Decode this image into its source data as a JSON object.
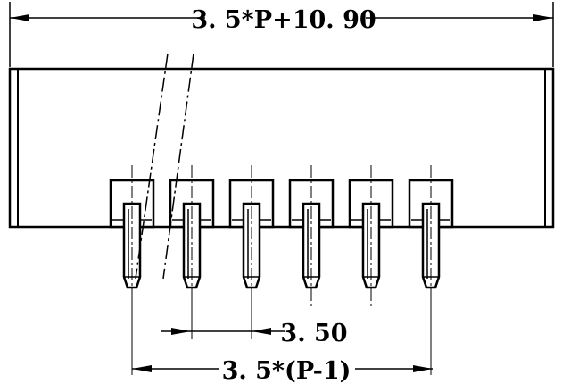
{
  "dimensions": {
    "overall_width": "3. 5*P+10. 90",
    "pitch": "3. 50",
    "pin_span": "3. 5*(P-1)"
  },
  "connector": {
    "pin_count": 6
  }
}
